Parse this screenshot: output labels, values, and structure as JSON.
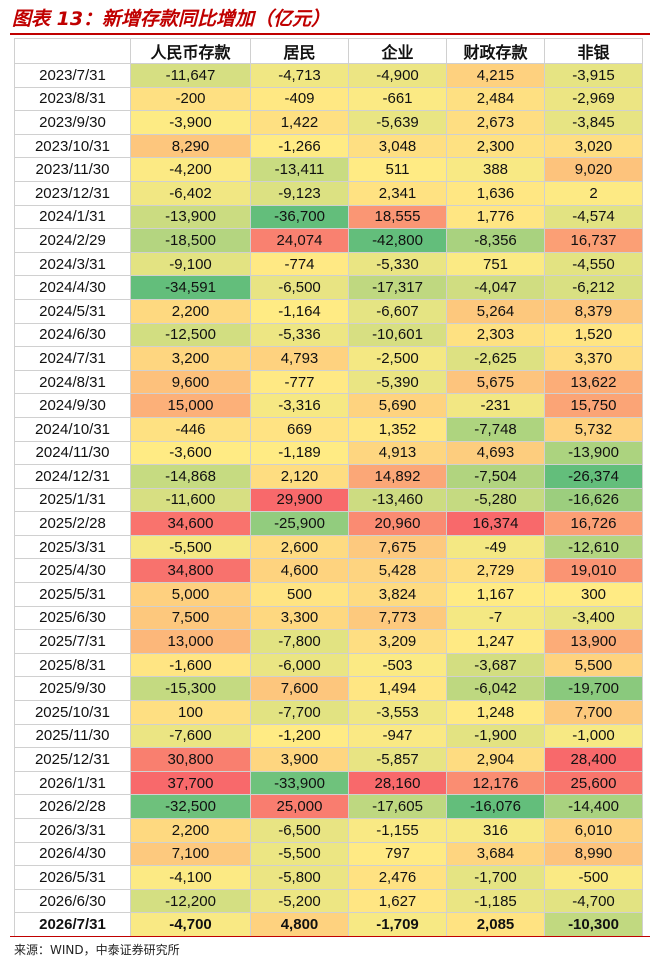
{
  "title": "图表 13：新增存款同比增加（亿元）",
  "table": {
    "columns": [
      "人民币存款",
      "居民",
      "企业",
      "财政存款",
      "非银"
    ],
    "rows": [
      [
        "2023/7/31",
        "-11,647",
        "-4,713",
        "-4,900",
        "4,215",
        "-3,915"
      ],
      [
        "2023/8/31",
        "-200",
        "-409",
        "-661",
        "2,484",
        "-2,969"
      ],
      [
        "2023/9/30",
        "-3,900",
        "1,422",
        "-5,639",
        "2,673",
        "-3,845"
      ],
      [
        "2023/10/31",
        "8,290",
        "-1,266",
        "3,048",
        "2,300",
        "3,020"
      ],
      [
        "2023/11/30",
        "-4,200",
        "-13,411",
        "511",
        "388",
        "9,020"
      ],
      [
        "2023/12/31",
        "-6,402",
        "-9,123",
        "2,341",
        "1,636",
        "2"
      ],
      [
        "2024/1/31",
        "-13,900",
        "-36,700",
        "18,555",
        "1,776",
        "-4,574"
      ],
      [
        "2024/2/29",
        "-18,500",
        "24,074",
        "-42,800",
        "-8,356",
        "16,737"
      ],
      [
        "2024/3/31",
        "-9,100",
        "-774",
        "-5,330",
        "751",
        "-4,550"
      ],
      [
        "2024/4/30",
        "-34,591",
        "-6,500",
        "-17,317",
        "-4,047",
        "-6,212"
      ],
      [
        "2024/5/31",
        "2,200",
        "-1,164",
        "-6,607",
        "5,264",
        "8,379"
      ],
      [
        "2024/6/30",
        "-12,500",
        "-5,336",
        "-10,601",
        "2,303",
        "1,520"
      ],
      [
        "2024/7/31",
        "3,200",
        "4,793",
        "-2,500",
        "-2,625",
        "3,370"
      ],
      [
        "2024/8/31",
        "9,600",
        "-777",
        "-5,390",
        "5,675",
        "13,622"
      ],
      [
        "2024/9/30",
        "15,000",
        "-3,316",
        "5,690",
        "-231",
        "15,750"
      ],
      [
        "2024/10/31",
        "-446",
        "669",
        "1,352",
        "-7,748",
        "5,732"
      ],
      [
        "2024/11/30",
        "-3,600",
        "-1,189",
        "4,913",
        "4,693",
        "-13,900"
      ],
      [
        "2024/12/31",
        "-14,868",
        "2,120",
        "14,892",
        "-7,504",
        "-26,374"
      ],
      [
        "2025/1/31",
        "-11,600",
        "29,900",
        "-13,460",
        "-5,280",
        "-16,626"
      ],
      [
        "2025/2/28",
        "34,600",
        "-25,900",
        "20,960",
        "16,374",
        "16,726"
      ],
      [
        "2025/3/31",
        "-5,500",
        "2,600",
        "7,675",
        "-49",
        "-12,610"
      ],
      [
        "2025/4/30",
        "34,800",
        "4,600",
        "5,428",
        "2,729",
        "19,010"
      ],
      [
        "2025/5/31",
        "5,000",
        "500",
        "3,824",
        "1,167",
        "300"
      ],
      [
        "2025/6/30",
        "7,500",
        "3,300",
        "7,773",
        "-7",
        "-3,400"
      ],
      [
        "2025/7/31",
        "13,000",
        "-7,800",
        "3,209",
        "1,247",
        "13,900"
      ],
      [
        "2025/8/31",
        "-1,600",
        "-6,000",
        "-503",
        "-3,687",
        "5,500"
      ],
      [
        "2025/9/30",
        "-15,300",
        "7,600",
        "1,494",
        "-6,042",
        "-19,700"
      ],
      [
        "2025/10/31",
        "100",
        "-7,700",
        "-3,553",
        "1,248",
        "7,700"
      ],
      [
        "2025/11/30",
        "-7,600",
        "-1,200",
        "-947",
        "-1,900",
        "-1,000"
      ],
      [
        "2025/12/31",
        "30,800",
        "3,900",
        "-5,857",
        "2,904",
        "28,400"
      ],
      [
        "2026/1/31",
        "37,700",
        "-33,900",
        "28,160",
        "12,176",
        "25,600"
      ],
      [
        "2026/2/28",
        "-32,500",
        "25,000",
        "-17,605",
        "-16,076",
        "-14,400"
      ],
      [
        "2026/3/31",
        "2,200",
        "-6,500",
        "-1,155",
        "316",
        "6,010"
      ],
      [
        "2026/4/30",
        "7,100",
        "-5,500",
        "797",
        "3,684",
        "8,990"
      ],
      [
        "2026/5/31",
        "-4,100",
        "-5,800",
        "2,476",
        "-1,700",
        "-500"
      ],
      [
        "2026/6/30",
        "-12,200",
        "-5,200",
        "1,627",
        "-1,185",
        "-4,700"
      ],
      [
        "2026/7/31",
        "-4,700",
        "4,800",
        "-1,709",
        "2,085",
        "-10,300"
      ]
    ]
  },
  "source": "来源：WIND，中泰证券研究所"
}
